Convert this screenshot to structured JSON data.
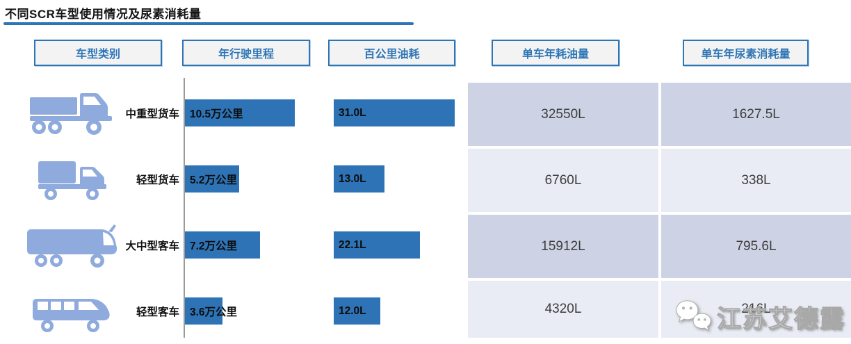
{
  "title": "不同SCR车型使用情况及尿素消耗量",
  "headers": {
    "vehicle_type": "车型类别",
    "annual_mileage": "年行驶里程",
    "fuel_per_100km": "百公里油耗",
    "annual_fuel": "单车年耗油量",
    "annual_urea": "单车年尿素消耗量"
  },
  "rows": [
    {
      "vehicle": "中重型货车",
      "icon": "heavy-truck-icon",
      "mileage_label": "10.5万公里",
      "mileage_value": 10.5,
      "fuel_label": "31.0L",
      "fuel_value": 31.0,
      "annual_fuel": "32550L",
      "annual_urea": "1627.5L"
    },
    {
      "vehicle": "轻型货车",
      "icon": "light-truck-icon",
      "mileage_label": "5.2万公里",
      "mileage_value": 5.2,
      "fuel_label": "13.0L",
      "fuel_value": 13.0,
      "annual_fuel": "6760L",
      "annual_urea": "338L"
    },
    {
      "vehicle": "大中型客车",
      "icon": "coach-bus-icon",
      "mileage_label": "7.2万公里",
      "mileage_value": 7.2,
      "fuel_label": "22.1L",
      "fuel_value": 22.1,
      "annual_fuel": "15912L",
      "annual_urea": "795.6L"
    },
    {
      "vehicle": "轻型客车",
      "icon": "minibus-icon",
      "mileage_label": "3.6万公里",
      "mileage_value": 3.6,
      "fuel_label": "12.0L",
      "fuel_value": 12.0,
      "annual_fuel": "4320L",
      "annual_urea": "216L"
    }
  ],
  "watermark": {
    "text": "江苏艾德露",
    "icon": "wechat-icon"
  },
  "colors": {
    "accent_blue": "#2e75b6",
    "bar_blue": "#2d73b5",
    "icon_blue": "#8faadc",
    "table_row_dark": "#cdd3e4",
    "table_row_light": "#e9ecf4",
    "axis_gray": "#9b9b9b"
  },
  "chart_data": {
    "type": "bar",
    "orientation": "horizontal",
    "title": "不同SCR车型使用情况及尿素消耗量",
    "categories": [
      "中重型货车",
      "轻型货车",
      "大中型客车",
      "轻型客车"
    ],
    "series": [
      {
        "name": "年行驶里程 (万公里)",
        "values": [
          10.5,
          5.2,
          7.2,
          3.6
        ],
        "labels": [
          "10.5万公里",
          "5.2万公里",
          "7.2万公里",
          "3.6万公里"
        ],
        "display": "bar"
      },
      {
        "name": "百公里油耗 (L)",
        "values": [
          31.0,
          13.0,
          22.1,
          12.0
        ],
        "labels": [
          "31.0L",
          "13.0L",
          "22.1L",
          "12.0L"
        ],
        "display": "bar"
      },
      {
        "name": "单车年耗油量 (L)",
        "values": [
          32550,
          6760,
          15912,
          4320
        ],
        "labels": [
          "32550L",
          "6760L",
          "15912L",
          "4320L"
        ],
        "display": "table"
      },
      {
        "name": "单车年尿素消耗量 (L)",
        "values": [
          1627.5,
          338,
          795.6,
          216
        ],
        "labels": [
          "1627.5L",
          "338L",
          "795.6L",
          "216L"
        ],
        "display": "table"
      }
    ],
    "legend": false,
    "grid": false
  }
}
